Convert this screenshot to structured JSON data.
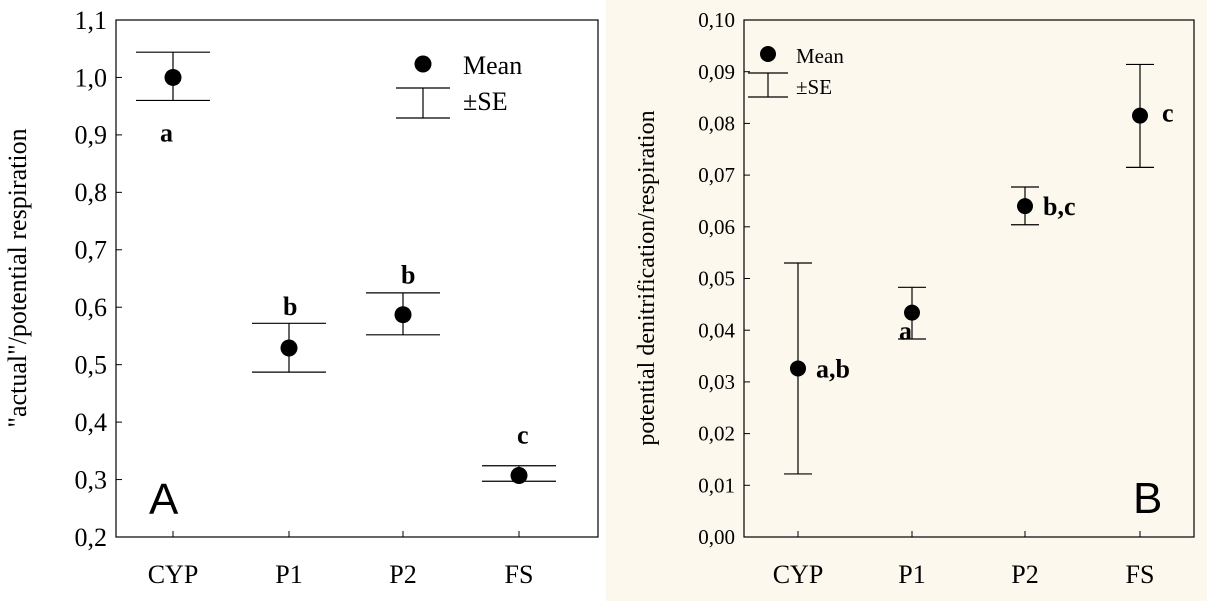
{
  "chart_data": [
    {
      "type": "scatter",
      "panel_label": "A",
      "ylabel": "\"actual\"/potential respiration",
      "categories": [
        "CYP",
        "P1",
        "P2",
        "FS"
      ],
      "ylim": [
        0.2,
        1.1
      ],
      "yticks": [
        "0,2",
        "0,3",
        "0,4",
        "0,5",
        "0,6",
        "0,7",
        "0,8",
        "0,9",
        "1,0",
        "1,1"
      ],
      "series": [
        {
          "name": "Mean",
          "values": [
            1.0,
            0.529,
            0.587,
            0.307
          ],
          "se_low": [
            0.96,
            0.487,
            0.552,
            0.297
          ],
          "se_high": [
            1.044,
            0.572,
            0.625,
            0.324
          ]
        }
      ],
      "letters": [
        "a",
        "b",
        "b",
        "c"
      ],
      "legend": {
        "mean": "Mean",
        "se": "±SE",
        "position": "top-right"
      },
      "grid": false
    },
    {
      "type": "scatter",
      "panel_label": "B",
      "ylabel": "potential denitrification/respiration",
      "categories": [
        "CYP",
        "P1",
        "P2",
        "FS"
      ],
      "ylim": [
        0.0,
        0.1
      ],
      "yticks": [
        "0,00",
        "0,01",
        "0,02",
        "0,03",
        "0,04",
        "0,05",
        "0,06",
        "0,07",
        "0,08",
        "0,09",
        "0,10"
      ],
      "series": [
        {
          "name": "Mean",
          "values": [
            0.0326,
            0.0434,
            0.064,
            0.0815
          ],
          "se_low": [
            0.0122,
            0.0383,
            0.0604,
            0.0715
          ],
          "se_high": [
            0.053,
            0.0483,
            0.0677,
            0.0914
          ]
        }
      ],
      "letters": [
        "a,b",
        "a",
        "b,c",
        "c"
      ],
      "legend": {
        "mean": "Mean",
        "se": "±SE",
        "position": "top-left"
      },
      "grid": false
    }
  ]
}
